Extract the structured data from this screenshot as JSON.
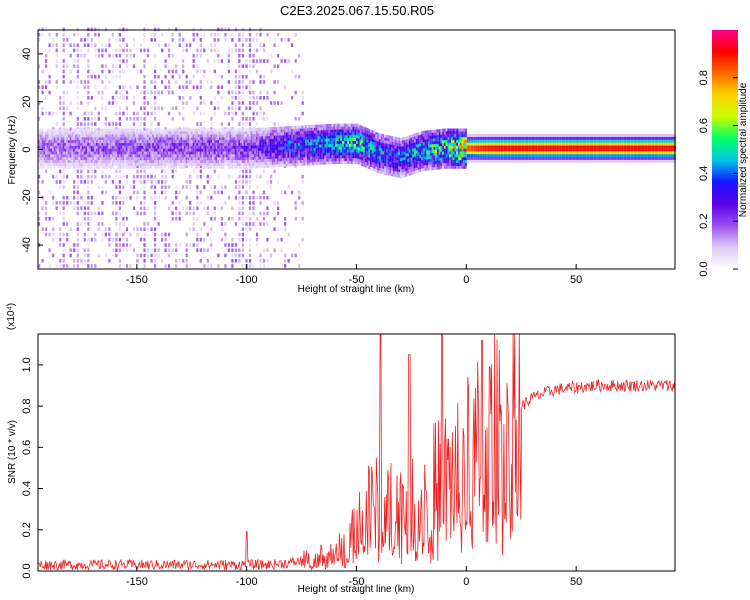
{
  "title": "C2E3.2025.067.15.50.R05",
  "colorbar": {
    "label": "Normalized spectral amplitude",
    "ticks": [
      "0.0",
      "0.2",
      "0.4",
      "0.6",
      "0.8"
    ],
    "tick_values": [
      0.0,
      0.2,
      0.4,
      0.6,
      0.8
    ],
    "range": [
      0,
      1
    ],
    "colormap": [
      "#ffffff",
      "#dcc8f5",
      "#9a4ef0",
      "#5a00e6",
      "#1414ff",
      "#00c8e6",
      "#00ff66",
      "#c8ff00",
      "#ffd200",
      "#ff6a00",
      "#ff0000",
      "#ff0090"
    ]
  },
  "chart_data": [
    {
      "type": "heatmap",
      "title": "C2E3.2025.067.15.50.R05",
      "xlabel": "Height of straight line (km)",
      "ylabel": "Frequency (Hz)",
      "xlim": [
        -195,
        95
      ],
      "ylim": [
        -50,
        50
      ],
      "x_ticks": [
        -150,
        -100,
        -50,
        0,
        50
      ],
      "x_tick_labels": [
        "-150",
        "-100",
        "-50",
        "0",
        "50"
      ],
      "y_ticks": [
        -40,
        -20,
        0,
        20,
        40
      ],
      "y_tick_labels": [
        "-40",
        "-20",
        "0",
        "20",
        "40"
      ],
      "ridge": {
        "description_values": "frequency center of the strongest signal vs height",
        "x": [
          -195,
          -150,
          -100,
          -80,
          -60,
          -50,
          -40,
          -30,
          -20,
          -10,
          0,
          5,
          10,
          20,
          50,
          95
        ],
        "center_hz": [
          0,
          0,
          0,
          1,
          2,
          2,
          -2,
          -4,
          -1,
          0,
          0,
          0,
          0,
          0,
          0,
          0
        ],
        "amplitude": [
          0.2,
          0.22,
          0.25,
          0.4,
          0.5,
          0.55,
          0.45,
          0.4,
          0.5,
          0.6,
          0.85,
          0.9,
          0.92,
          0.93,
          0.93,
          0.93
        ]
      },
      "noise_cutoff_x": -75,
      "grid": false
    },
    {
      "type": "line",
      "xlabel": "Height of straight line (km)",
      "ylabel": "SNR (10 * v/v)",
      "y_multiplier": "(x10⁴)",
      "xlim": [
        -195,
        95
      ],
      "ylim": [
        0,
        1.15
      ],
      "x_ticks": [
        -150,
        -100,
        -50,
        0,
        50
      ],
      "x_tick_labels": [
        "-150",
        "-100",
        "-50",
        "0",
        "50"
      ],
      "y_ticks": [
        0.0,
        0.2,
        0.4,
        0.6,
        0.8,
        1.0
      ],
      "y_tick_labels": [
        "0.0",
        "0.2",
        "0.4",
        "0.6",
        "0.8",
        "1.0"
      ],
      "color": "#ee2222",
      "series": [
        {
          "x": [
            -195,
            -170,
            -150,
            -130,
            -110,
            -100,
            -90,
            -80,
            -70,
            -60,
            -55,
            -50,
            -45,
            -40,
            -35,
            -30,
            -25,
            -20,
            -15,
            -10,
            -5,
            0,
            5,
            10,
            15,
            20,
            25,
            30,
            35,
            40,
            50,
            60,
            70,
            80,
            95
          ],
          "values": [
            0.03,
            0.03,
            0.03,
            0.03,
            0.03,
            0.03,
            0.03,
            0.04,
            0.06,
            0.08,
            0.12,
            0.18,
            0.28,
            0.3,
            0.32,
            0.3,
            0.34,
            0.36,
            0.38,
            0.42,
            0.46,
            0.5,
            0.55,
            0.58,
            0.66,
            0.74,
            0.8,
            0.84,
            0.86,
            0.88,
            0.89,
            0.9,
            0.9,
            0.9,
            0.9
          ]
        }
      ],
      "spikes": [
        {
          "x": -100,
          "y": 0.19
        },
        {
          "x": -39,
          "y": 1.15
        },
        {
          "x": -26,
          "y": 1.05
        },
        {
          "x": -11,
          "y": 1.15
        },
        {
          "x": 7,
          "y": 1.12
        }
      ],
      "grid": false
    }
  ]
}
